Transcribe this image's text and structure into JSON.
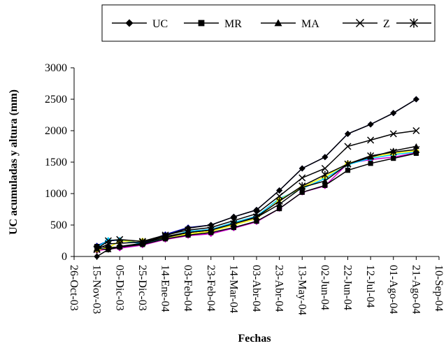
{
  "chart_data": {
    "type": "line",
    "title": "",
    "xlabel": "Fechas",
    "ylabel": "UC acumuladas y altura (mm)",
    "ylim": [
      0,
      3000
    ],
    "yticks": [
      "0",
      "500",
      "1000",
      "1500",
      "2000",
      "2500",
      "3000"
    ],
    "grid": false,
    "legend_position": "top",
    "x_ticks": [
      "26-Oct-03",
      "15-Nov-03",
      "05-Dic-03",
      "25-Dic-03",
      "14-Ene-04",
      "03-Feb-04",
      "23-Feb-04",
      "14-Mar-04",
      "03-Abr-04",
      "23-Abr-04",
      "13-May-04",
      "02-Jun-04",
      "22-Jun-04",
      "12-Jul-04",
      "01-Ago-04",
      "21-Ago-04",
      "10-Sep-04"
    ],
    "x": [
      "15-Nov-03",
      "25-Nov-03",
      "05-Dic-03",
      "25-Dic-03",
      "14-Ene-04",
      "03-Feb-04",
      "23-Feb-04",
      "14-Mar-04",
      "03-Abr-04",
      "23-Abr-04",
      "13-May-04",
      "02-Jun-04",
      "22-Jun-04",
      "12-Jul-04",
      "01-Ago-04",
      "21-Ago-04"
    ],
    "series": [
      {
        "name": "UC",
        "marker": "diamond",
        "color": "#000000",
        "values": [
          0,
          110,
          150,
          200,
          330,
          450,
          500,
          630,
          740,
          1050,
          1400,
          1580,
          1950,
          2100,
          2280,
          2500
        ]
      },
      {
        "name": "MR",
        "marker": "square",
        "color": "#000000",
        "values": [
          160,
          140,
          150,
          190,
          280,
          340,
          380,
          460,
          560,
          760,
          1020,
          1130,
          1370,
          1480,
          1560,
          1640
        ]
      },
      {
        "name": "MA",
        "marker": "triangle",
        "color": "#000000",
        "values": [
          130,
          110,
          160,
          210,
          300,
          380,
          420,
          520,
          620,
          830,
          1100,
          1200,
          1470,
          1580,
          1680,
          1750
        ]
      },
      {
        "name": "Z",
        "marker": "x",
        "color": "#000000",
        "values": [
          120,
          250,
          270,
          240,
          340,
          420,
          460,
          570,
          680,
          960,
          1250,
          1400,
          1750,
          1850,
          1950,
          2000
        ]
      },
      {
        "name": "",
        "marker": "star",
        "color": "#000000",
        "values": [
          110,
          200,
          210,
          230,
          320,
          380,
          420,
          520,
          630,
          880,
          1120,
          1300,
          1470,
          1600,
          1660,
          1700
        ]
      },
      {
        "name": "",
        "marker": "circle",
        "color": "#ffff00",
        "values": [
          100,
          140,
          240,
          250,
          300,
          360,
          400,
          500,
          600,
          900,
          1100,
          1270,
          1480,
          1580,
          1640,
          1680
        ]
      },
      {
        "name": "",
        "marker": "circle",
        "color": "#00c8ff",
        "values": [
          150,
          260,
          260,
          200,
          300,
          400,
          430,
          540,
          640,
          920,
          1080,
          1240,
          1460,
          1560,
          1620,
          1660
        ]
      },
      {
        "name": "",
        "marker": "circle",
        "color": "#0000aa",
        "values": [
          170,
          250,
          260,
          210,
          350,
          460,
          500,
          630,
          740,
          1050,
          1400,
          1580,
          1950,
          2100,
          2280,
          2500
        ]
      },
      {
        "name": "",
        "marker": "circle",
        "color": "#cc00cc",
        "values": [
          90,
          120,
          130,
          180,
          270,
          330,
          360,
          450,
          550,
          760,
          1020,
          1120,
          1480,
          1540,
          1580,
          1650
        ]
      }
    ]
  }
}
